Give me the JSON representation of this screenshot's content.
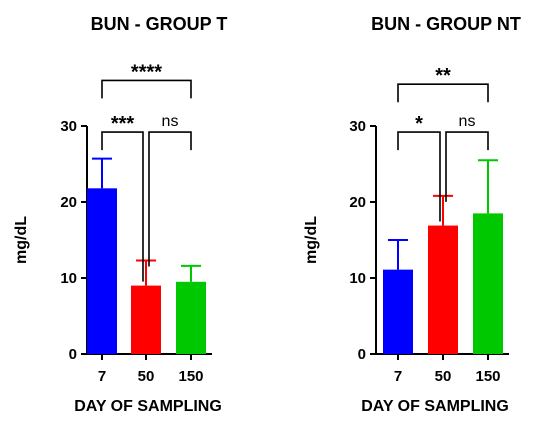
{
  "chart_data": [
    {
      "type": "bar",
      "title": "BUN - GROUP T",
      "xlabel": "DAY OF SAMPLING",
      "ylabel": "mg/dL",
      "ylim": [
        0,
        30
      ],
      "yticks": [
        0,
        10,
        20,
        30
      ],
      "categories": [
        "7",
        "50",
        "150"
      ],
      "values": [
        21.8,
        9.0,
        9.5
      ],
      "error_upper": [
        25.7,
        12.3,
        11.6
      ],
      "colors": [
        "#0000ff",
        "#ff0000",
        "#00c800"
      ],
      "comparisons": [
        {
          "from": 0,
          "to": 2,
          "label": "****",
          "level": 36
        },
        {
          "from": 0,
          "to": 1,
          "label": "***",
          "level": 29.2
        },
        {
          "from": 1,
          "to": 2,
          "label": "ns",
          "level": 29.2
        }
      ]
    },
    {
      "type": "bar",
      "title": "BUN - GROUP NT",
      "xlabel": "DAY OF SAMPLING",
      "ylabel": "mg/dL",
      "ylim": [
        0,
        30
      ],
      "yticks": [
        0,
        10,
        20,
        30
      ],
      "categories": [
        "7",
        "50",
        "150"
      ],
      "values": [
        11.1,
        16.9,
        18.5
      ],
      "error_upper": [
        15.0,
        20.8,
        25.5
      ],
      "colors": [
        "#0000ff",
        "#ff0000",
        "#00c800"
      ],
      "comparisons": [
        {
          "from": 0,
          "to": 2,
          "label": "**",
          "level": 35.5
        },
        {
          "from": 0,
          "to": 1,
          "label": "*",
          "level": 29.2
        },
        {
          "from": 1,
          "to": 2,
          "label": "ns",
          "level": 29.2
        }
      ]
    }
  ]
}
